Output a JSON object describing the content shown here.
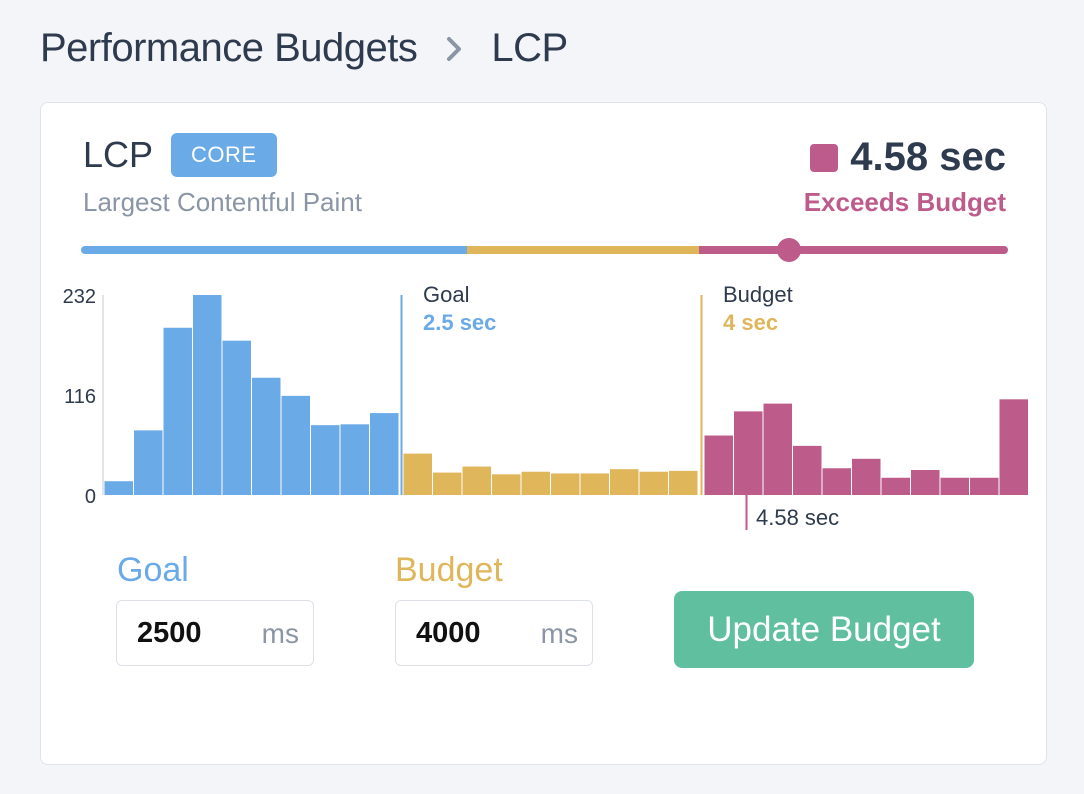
{
  "breadcrumb": {
    "parent": "Performance Budgets",
    "current": "LCP"
  },
  "metric": {
    "abbr": "LCP",
    "badge": "CORE",
    "name": "Largest Contentful Paint",
    "value": "4.58 sec",
    "status": "Exceeds Budget"
  },
  "colors": {
    "goal": "#6aaae6",
    "budget": "#e0b65a",
    "over": "#bd5b8b",
    "button": "#5fbf9f"
  },
  "range": {
    "goal_ms": 2500,
    "budget_ms": 4000,
    "max_ms": 6000,
    "value_ms": 4580
  },
  "chart_data": {
    "type": "bar",
    "title": "",
    "y_ticks": [
      "232",
      "116",
      "0"
    ],
    "ylim": [
      0,
      232
    ],
    "series": [
      {
        "name": "within-goal",
        "values": [
          16,
          75,
          194,
          232,
          179,
          136,
          115,
          81,
          82,
          95
        ]
      },
      {
        "name": "within-budget",
        "values": [
          48,
          26,
          33,
          24,
          27,
          25,
          25,
          30,
          27,
          28
        ]
      },
      {
        "name": "over-budget",
        "values": [
          69,
          97,
          106,
          57,
          31,
          42,
          20,
          29,
          20,
          20,
          111
        ]
      }
    ],
    "markers": [
      {
        "label": "Goal",
        "value": "2.5 sec"
      },
      {
        "label": "Budget",
        "value": "4 sec"
      },
      {
        "label": "4.58 sec"
      }
    ]
  },
  "form": {
    "goal_label": "Goal",
    "goal_value": "2500",
    "goal_unit": "ms",
    "budget_label": "Budget",
    "budget_value": "4000",
    "budget_unit": "ms",
    "button_label": "Update Budget"
  }
}
